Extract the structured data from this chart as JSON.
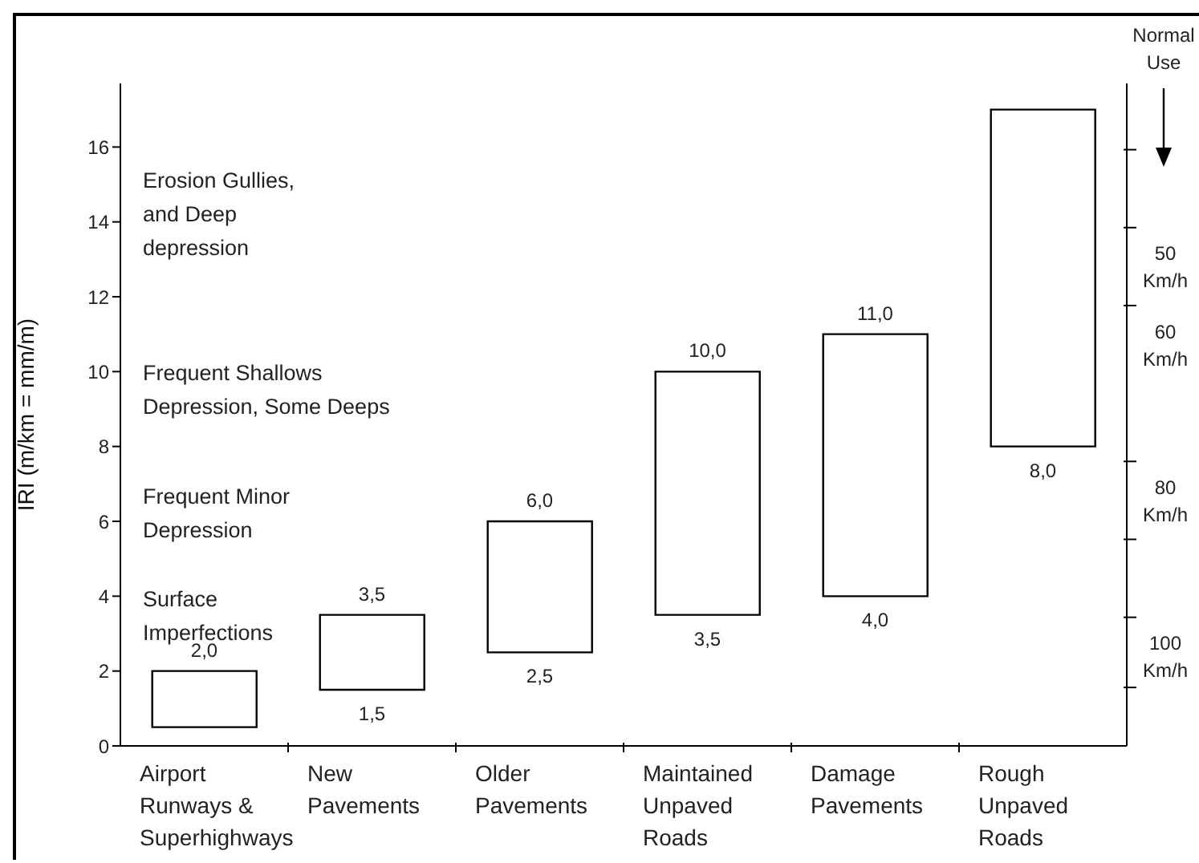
{
  "chart_data": {
    "type": "bar",
    "ylabel": "IRI (m/km = mm/m)",
    "y2label": "Normal\nUse",
    "categories": [
      "Airport\nRunways &\nSuperhighways",
      "New\nPavements",
      "Older\nPavements",
      "Maintained\nUnpaved\nRoads",
      "Damage\nPavements",
      "Rough\nUnpaved\nRoads"
    ],
    "base": [
      0.5,
      1.5,
      2.5,
      3.5,
      4.0,
      8.0
    ],
    "values": [
      1.5,
      2.0,
      3.5,
      6.5,
      7.0,
      9.0
    ],
    "color": "#ffffff",
    "ylim": [
      0,
      17.7
    ],
    "yticks": [
      0,
      2,
      4,
      6,
      8,
      10,
      12,
      14,
      16
    ],
    "y2lim": [
      111.5,
      26.5
    ],
    "y2ticks": [
      {
        "value": 35,
        "label": null
      },
      {
        "value": 45,
        "label": null
      },
      {
        "value": 50,
        "label": "50\nKm/h"
      },
      {
        "value": 55,
        "label": null
      },
      {
        "value": 60,
        "label": "60\nKm/h"
      },
      {
        "value": 75,
        "label": null
      },
      {
        "value": 80,
        "label": "80\nKm/h"
      },
      {
        "value": 85,
        "label": null
      },
      {
        "value": 95,
        "label": null
      },
      {
        "value": 100,
        "label": "100\nKm/h"
      },
      {
        "value": 104,
        "label": null
      }
    ],
    "annotations": [
      "Erosion Gullies,\nand Deep\ndepression",
      "Frequent Shallows\nDepression, Some Deeps",
      "Frequent Minor\nDepression",
      "Surface\nImperfections",
      {
        "text": "2,0",
        "x": "Airport\nRunways &\nSuperhighways",
        "y": 2.0
      },
      {
        "text": "3,5",
        "x": "New\nPavements",
        "y": 3.5
      },
      {
        "text": "1,5",
        "x": "New\nPavements",
        "y": 1.5
      },
      {
        "text": "6,0",
        "x": "Older\nPavements",
        "y": 6.0
      },
      {
        "text": "2,5",
        "x": "Older\nPavements",
        "y": 2.5
      },
      {
        "text": "10,0",
        "x": "Maintained\nUnpaved\nRoads",
        "y": 10.0
      },
      {
        "text": "3,5",
        "x": "Maintained\nUnpaved\nRoads",
        "y": 3.5
      },
      {
        "text": "11,0",
        "x": "Damage\nPavements",
        "y": 11.0
      },
      {
        "text": "4,0",
        "x": "Damage\nPavements",
        "y": 4.0
      },
      {
        "text": "8,0",
        "x": "Rough\nUnpaved\nRoads",
        "y": 8.0
      }
    ]
  }
}
